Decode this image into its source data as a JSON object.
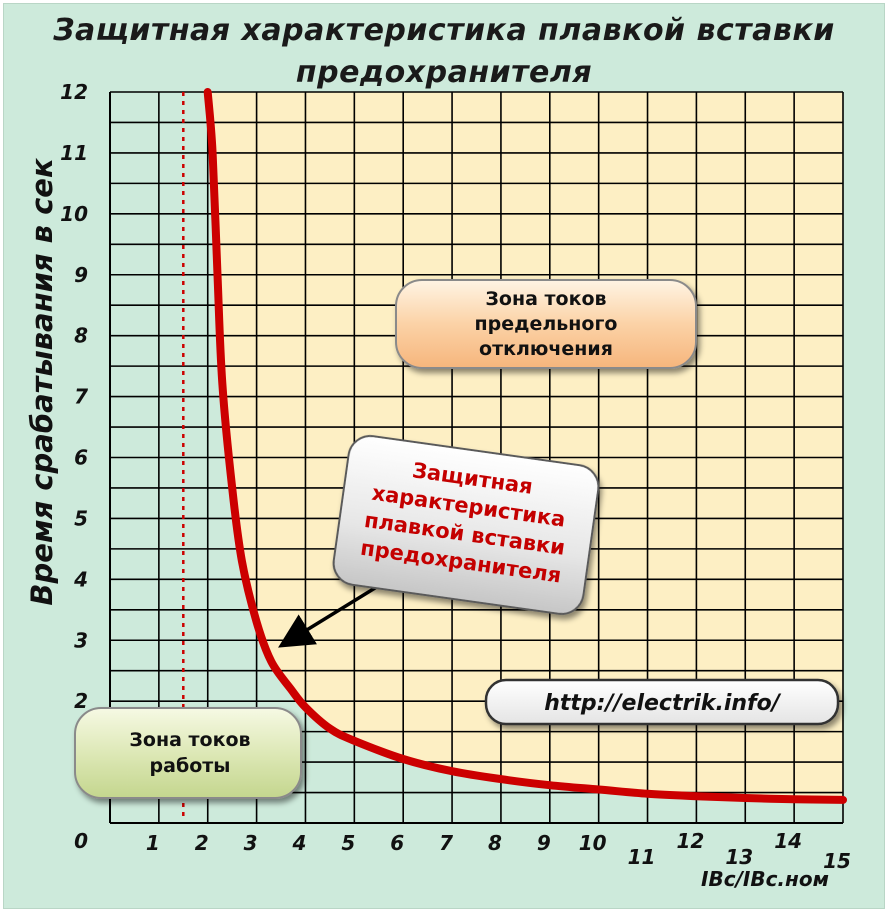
{
  "title_line1": "Защитная характеристика плавкой вставки",
  "title_line2": "предохранителя",
  "colors": {
    "background": "#cdeadb",
    "operating_zone": "#cdeadb",
    "trip_zone": "#fdefc4",
    "curve": "#cc0000",
    "grid": "#000000",
    "dotted_line": "#cc0000"
  },
  "annotations": {
    "trip_zone_label": [
      "Зона токов",
      "предельного",
      "отключения"
    ],
    "operating_zone_label": [
      "Зона токов",
      "работы"
    ],
    "curve_callout": [
      "Защитная",
      "характеристика",
      "плавкой вставки",
      "предохранителя"
    ],
    "url": "http://electrik.info/"
  },
  "chart_data": {
    "type": "line",
    "title": "Защитная характеристика плавкой вставки предохранителя",
    "xlabel": "IBc/IBc.ном",
    "ylabel": "Время срабатывания в сек",
    "xlim": [
      0,
      15
    ],
    "ylim": [
      0,
      12
    ],
    "x_ticks": [
      "0",
      "1",
      "2",
      "3",
      "4",
      "5",
      "6",
      "7",
      "8",
      "9",
      "10",
      "11",
      "12",
      "13",
      "14",
      "15"
    ],
    "y_ticks": [
      "0",
      "1",
      "2",
      "3",
      "4",
      "5",
      "6",
      "7",
      "8",
      "9",
      "10",
      "11",
      "12"
    ],
    "grid": true,
    "rated_current_marker_x": 1.5,
    "series": [
      {
        "x": [
          2.0,
          2.1,
          2.2,
          2.3,
          2.5,
          2.7,
          3.0,
          3.3,
          3.7,
          4.0,
          4.5,
          5.0,
          6.0,
          7.0,
          8.0,
          9.0,
          10.0,
          11.0,
          12.0,
          13.0,
          14.0,
          15.0
        ],
        "y": [
          12.0,
          11.0,
          9.0,
          7.2,
          5.5,
          4.3,
          3.3,
          2.65,
          2.2,
          1.9,
          1.55,
          1.35,
          1.05,
          0.85,
          0.72,
          0.62,
          0.55,
          0.48,
          0.44,
          0.41,
          0.39,
          0.38
        ]
      }
    ]
  }
}
